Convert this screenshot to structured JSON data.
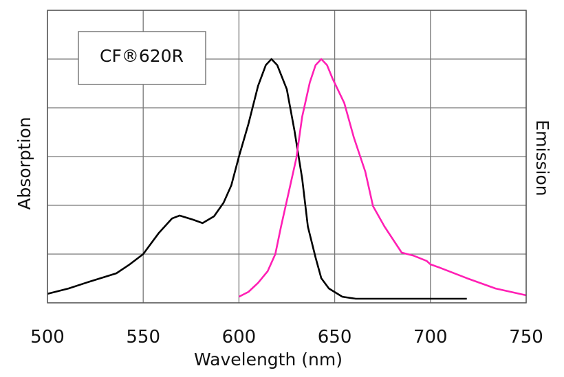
{
  "chart_data": {
    "type": "line",
    "title": "CF®620R",
    "xlabel": "Wavelength (nm)",
    "ylabel_left": "Absorption",
    "ylabel_right": "Emission",
    "xlim": [
      500,
      750
    ],
    "ylim": [
      0,
      1.2
    ],
    "xticks": [
      500,
      550,
      600,
      650,
      700,
      750
    ],
    "yticks": [
      0,
      0.2,
      0.4,
      0.6,
      0.8,
      1.0,
      1.2
    ],
    "grid": true,
    "legend": "top-left",
    "series": [
      {
        "name": "Absorption",
        "color": "#000000",
        "x": [
          500,
          511,
          522,
          536,
          543,
          550,
          558,
          565,
          569,
          576,
          581,
          587,
          592,
          596,
          600,
          605,
          610,
          614,
          617,
          620,
          625,
          629,
          633,
          636,
          640,
          643,
          647,
          654,
          661,
          676,
          719
        ],
        "y": [
          0.037,
          0.059,
          0.087,
          0.121,
          0.158,
          0.2,
          0.285,
          0.346,
          0.358,
          0.341,
          0.327,
          0.355,
          0.411,
          0.482,
          0.6,
          0.735,
          0.89,
          0.975,
          1.0,
          0.975,
          0.876,
          0.707,
          0.51,
          0.313,
          0.186,
          0.101,
          0.059,
          0.025,
          0.017,
          0.017,
          0.017
        ]
      },
      {
        "name": "Emission",
        "color": "#ff1fb4",
        "x": [
          600,
          605,
          610,
          615,
          619,
          622,
          626,
          630,
          633,
          637,
          640,
          643,
          646,
          649,
          655,
          660,
          666,
          670,
          676,
          685,
          691,
          698,
          700,
          705,
          719,
          734,
          750
        ],
        "y": [
          0.025,
          0.045,
          0.082,
          0.13,
          0.2,
          0.313,
          0.454,
          0.594,
          0.763,
          0.904,
          0.975,
          1.0,
          0.975,
          0.918,
          0.82,
          0.679,
          0.538,
          0.397,
          0.313,
          0.206,
          0.194,
          0.172,
          0.158,
          0.144,
          0.101,
          0.059,
          0.031
        ]
      }
    ]
  }
}
